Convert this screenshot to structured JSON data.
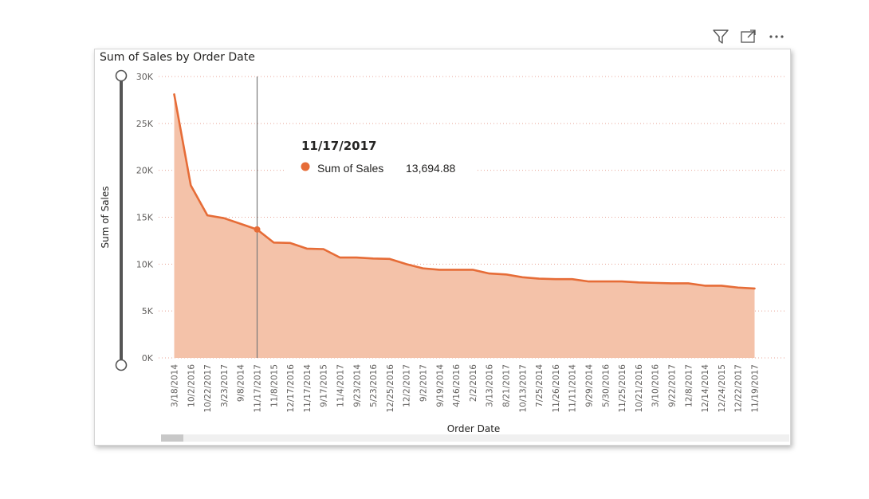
{
  "visual": {
    "title": "Sum of Sales by Order Date",
    "header_icons": [
      "filter-icon",
      "focus-mode-icon",
      "more-options-icon"
    ]
  },
  "colors": {
    "line": "#E66C37",
    "area": "#F4C2A9",
    "gridline": "#E8A598",
    "axis_text": "#605E5C",
    "slider": "#555555"
  },
  "tooltip": {
    "date": "11/17/2017",
    "series_name": "Sum of Sales",
    "value": "13,694.88",
    "category_index": 5
  },
  "chart_data": {
    "type": "area",
    "xlabel": "Order Date",
    "ylabel": "Sum of Sales",
    "ylim": [
      0,
      30000
    ],
    "yticks": [
      "0K",
      "5K",
      "10K",
      "15K",
      "20K",
      "25K",
      "30K"
    ],
    "grid": true,
    "categories": [
      "3/18/2014",
      "10/2/2016",
      "10/22/2017",
      "3/23/2017",
      "9/8/2014",
      "11/17/2017",
      "11/8/2015",
      "12/17/2016",
      "11/17/2014",
      "9/17/2015",
      "11/4/2017",
      "9/23/2014",
      "5/23/2016",
      "12/25/2016",
      "12/2/2017",
      "9/2/2017",
      "9/19/2014",
      "4/16/2016",
      "2/2/2016",
      "3/13/2016",
      "8/21/2017",
      "10/13/2017",
      "7/25/2014",
      "11/26/2016",
      "11/11/2014",
      "9/29/2014",
      "5/30/2016",
      "11/25/2016",
      "10/21/2016",
      "3/10/2016",
      "9/22/2017",
      "12/8/2017",
      "12/14/2014",
      "12/24/2015",
      "12/22/2017",
      "11/19/2017"
    ],
    "series": [
      {
        "name": "Sum of Sales",
        "values": [
          28100,
          18400,
          15200,
          14900,
          14300,
          13694.88,
          12300,
          12250,
          11650,
          11600,
          10700,
          10700,
          10600,
          10550,
          10000,
          9550,
          9400,
          9400,
          9400,
          9000,
          8900,
          8600,
          8450,
          8400,
          8400,
          8150,
          8150,
          8150,
          8050,
          8000,
          7950,
          7950,
          7700,
          7700,
          7500,
          7400
        ]
      }
    ]
  }
}
